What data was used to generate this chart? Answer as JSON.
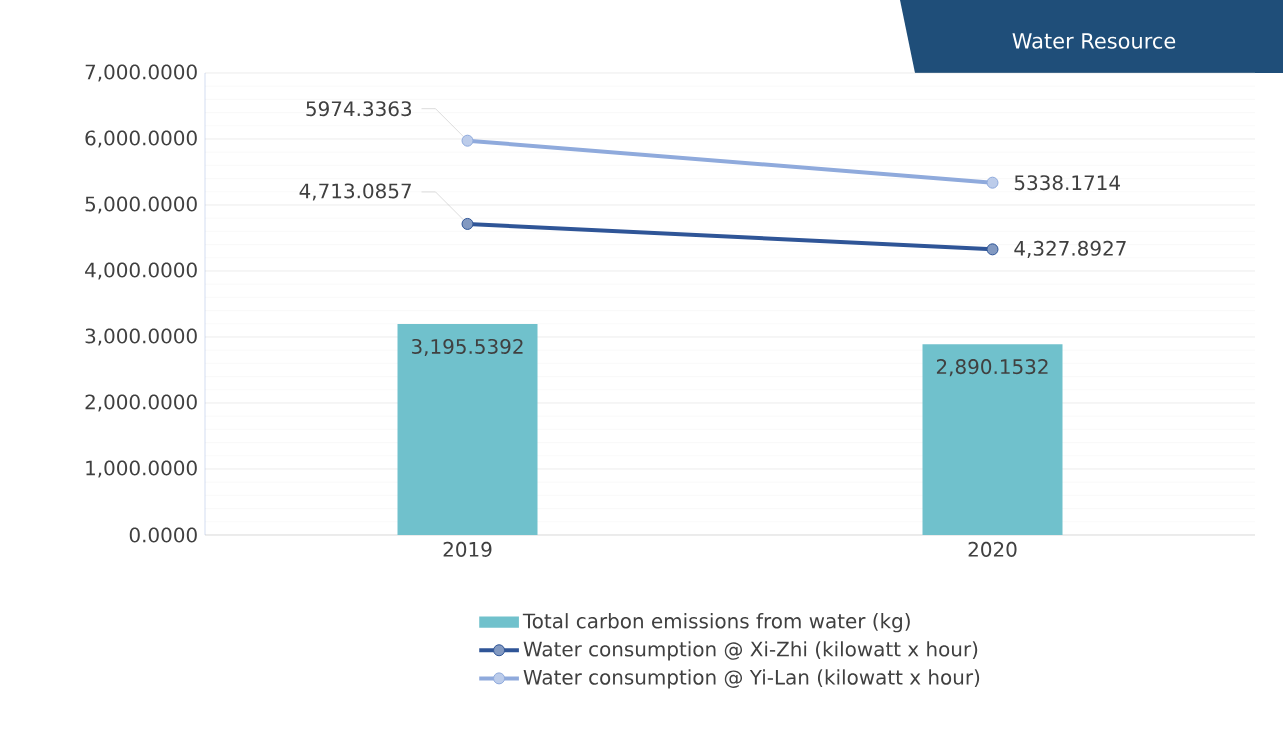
{
  "chart_data": {
    "type": "bar",
    "title": "Water Resource",
    "categories": [
      "2019",
      "2020"
    ],
    "ylim": [
      0,
      7000
    ],
    "yticks": [
      {
        "value": 0,
        "label": "0.0000"
      },
      {
        "value": 1000,
        "label": "1,000.0000"
      },
      {
        "value": 2000,
        "label": "2,000.0000"
      },
      {
        "value": 3000,
        "label": "3,000.0000"
      },
      {
        "value": 4000,
        "label": "4,000.0000"
      },
      {
        "value": 5000,
        "label": "5,000.0000"
      },
      {
        "value": 6000,
        "label": "6,000.0000"
      },
      {
        "value": 7000,
        "label": "7,000.0000"
      }
    ],
    "grid": "y",
    "legend": "bottom",
    "marker": "circle",
    "series": [
      {
        "name": "Total carbon emissions from water (kg)",
        "color": "#70c1cc",
        "values": [
          3195.5392,
          2890.1532
        ],
        "value_labels": [
          "3,195.5392",
          "2,890.1532"
        ]
      },
      {
        "name": "Water consumption @ Xi-Zhi (kilowatt x hour)",
        "type": "line",
        "color": "#2f5597",
        "values": [
          4713.0857,
          4327.8927
        ],
        "value_labels": [
          "4,713.0857",
          "4,327.8927"
        ]
      },
      {
        "name": "Water consumption @ Yi-Lan (kilowatt x hour)",
        "type": "line",
        "color": "#8faadc",
        "values": [
          5974.3363,
          5338.1714
        ],
        "value_labels": [
          "5974.3363",
          "5338.1714"
        ]
      }
    ]
  }
}
